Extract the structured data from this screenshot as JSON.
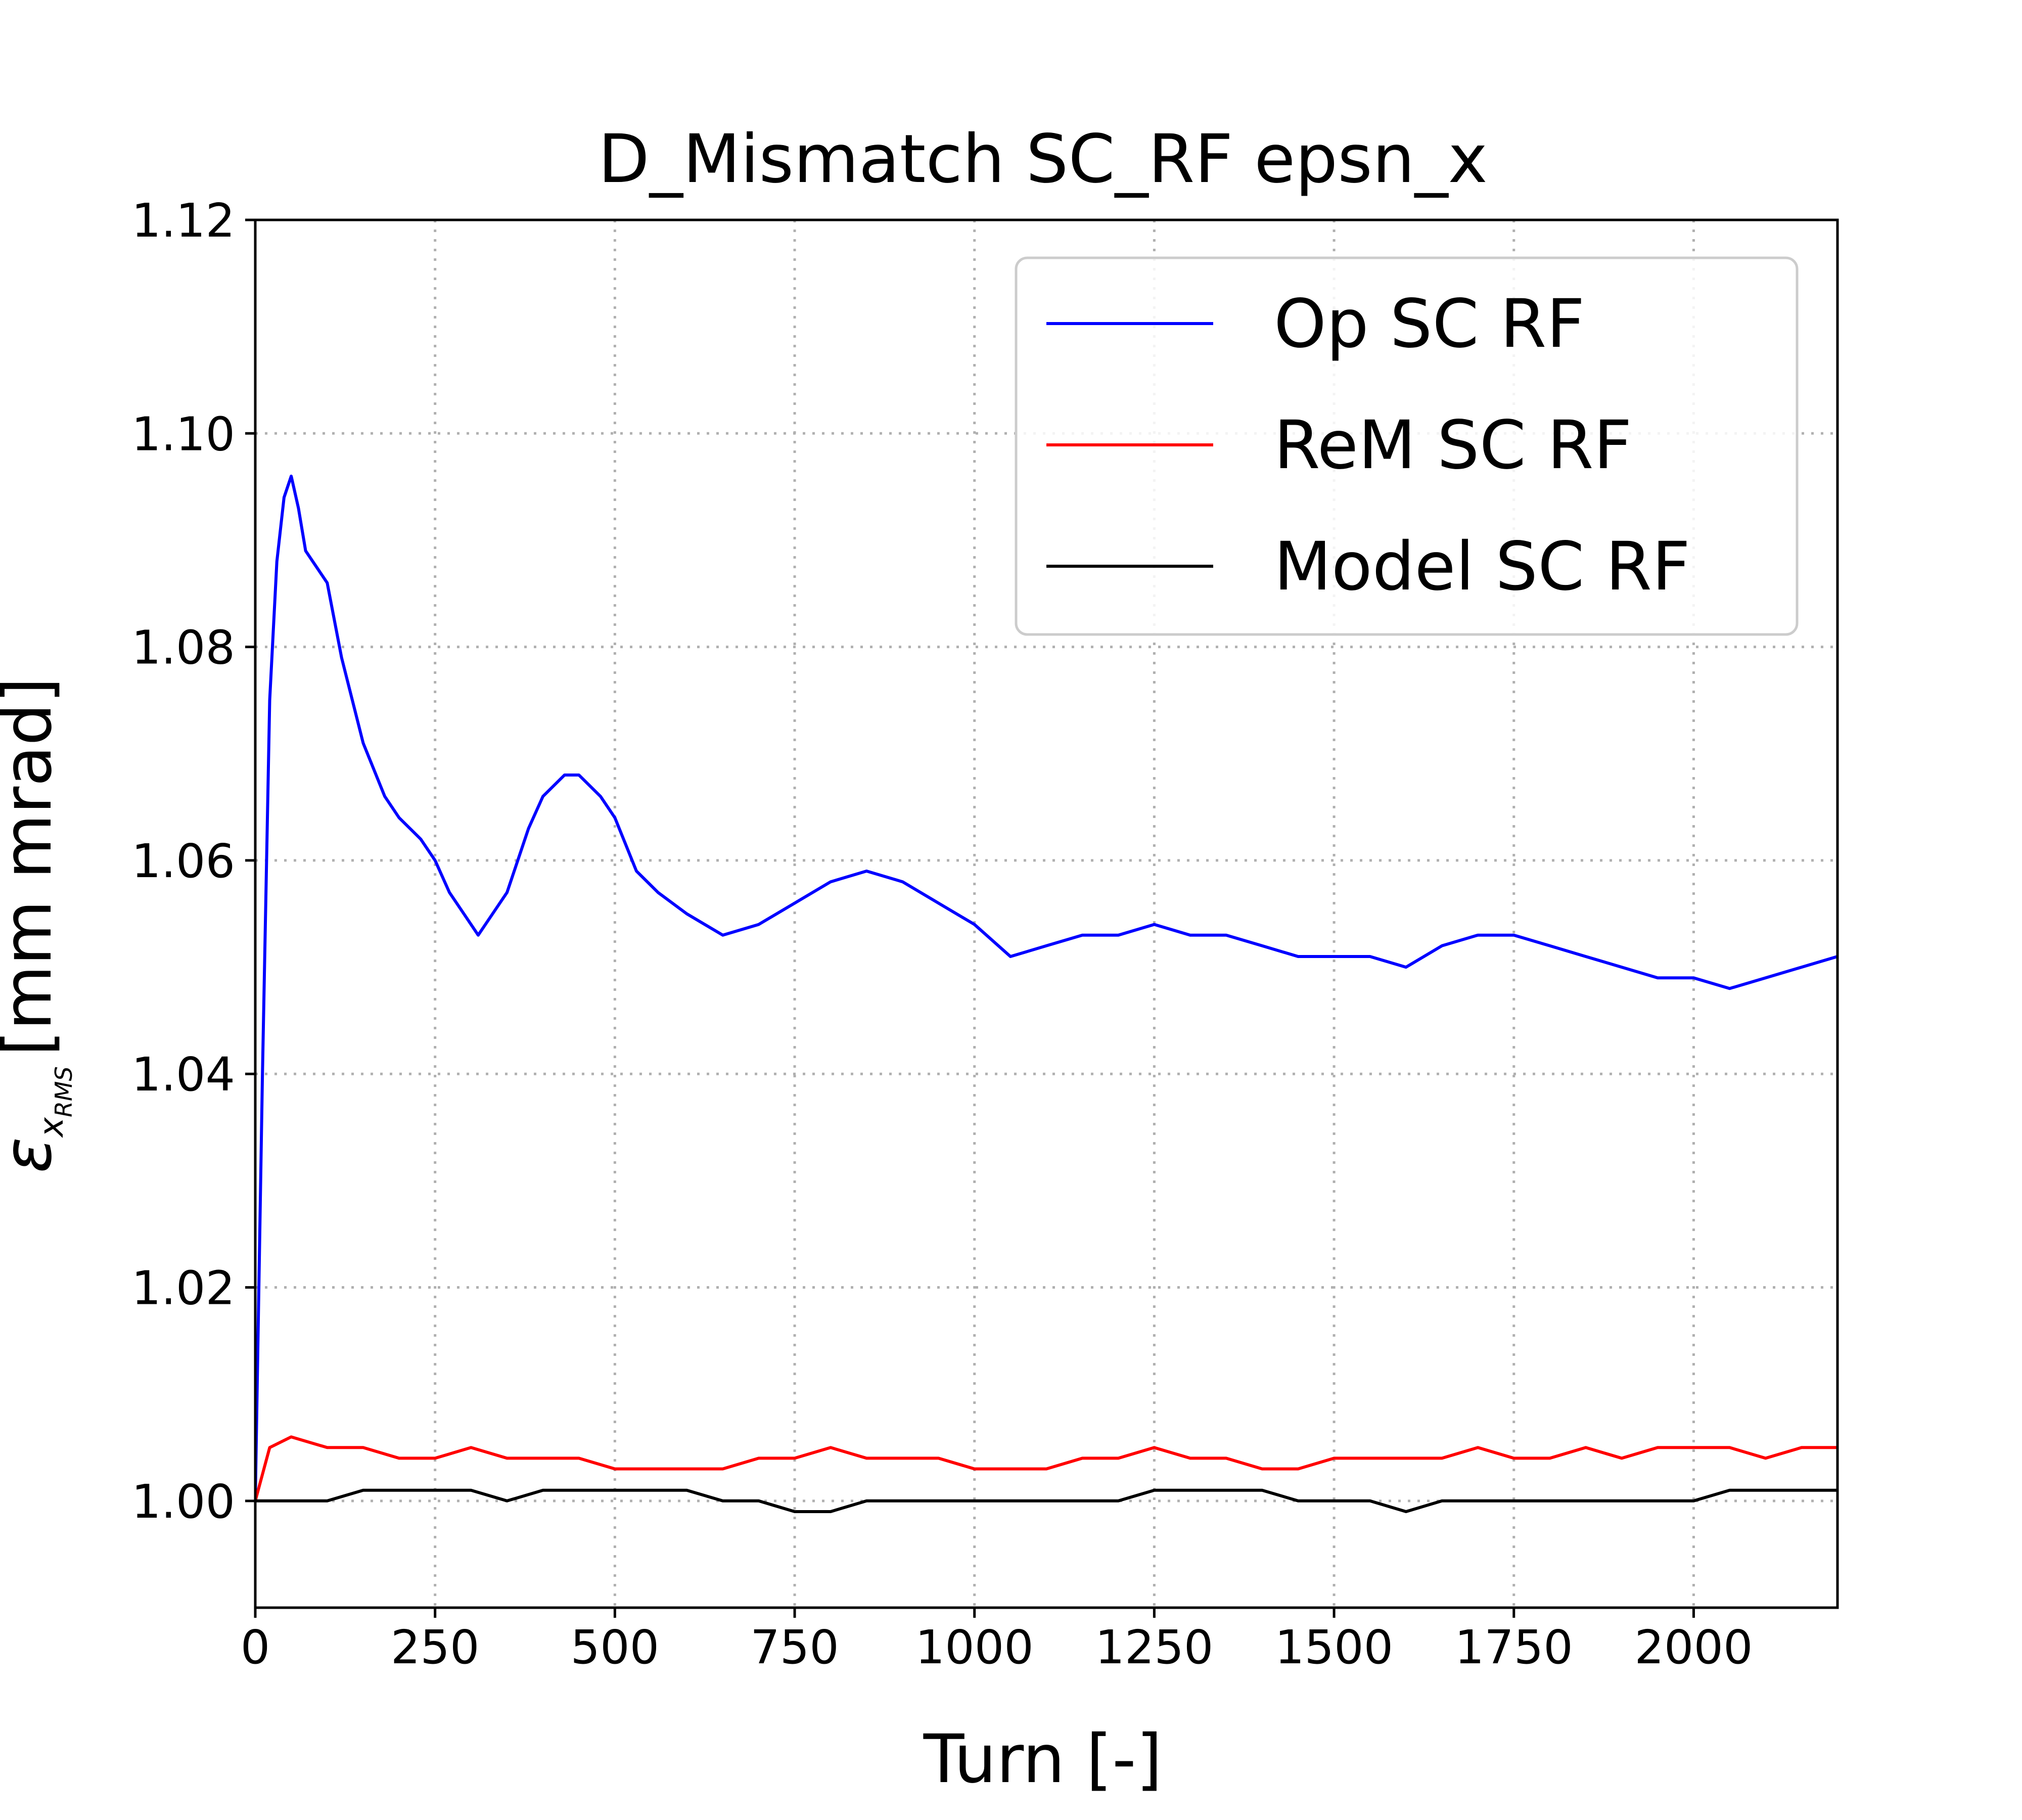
{
  "chart_data": {
    "type": "line",
    "title": "D_Mismatch SC_RF epsn_x",
    "xlabel": "Turn [-]",
    "ylabel_symbol": "ε",
    "ylabel_subscript": "x",
    "ylabel_sub_subscript": "RMS",
    "ylabel_units": "[mm mrad]",
    "xlim": [
      0,
      2200
    ],
    "ylim": [
      0.99,
      1.12
    ],
    "xticks": [
      0,
      250,
      500,
      750,
      1000,
      1250,
      1500,
      1750,
      2000
    ],
    "xtick_labels": [
      "0",
      "250",
      "500",
      "750",
      "1000",
      "1250",
      "1500",
      "1750",
      "2000"
    ],
    "yticks": [
      1.0,
      1.02,
      1.04,
      1.06,
      1.08,
      1.1,
      1.12
    ],
    "ytick_labels": [
      "1.00",
      "1.02",
      "1.04",
      "1.06",
      "1.08",
      "1.10",
      "1.12"
    ],
    "grid": true,
    "legend_position": "top-right",
    "series": [
      {
        "name": "Op SC RF",
        "color": "#0000ff",
        "x": [
          0,
          10,
          20,
          30,
          40,
          50,
          60,
          70,
          80,
          100,
          120,
          150,
          180,
          200,
          230,
          250,
          270,
          290,
          310,
          330,
          350,
          380,
          400,
          430,
          450,
          480,
          500,
          530,
          560,
          600,
          650,
          700,
          750,
          800,
          850,
          900,
          950,
          1000,
          1050,
          1100,
          1150,
          1200,
          1250,
          1300,
          1350,
          1400,
          1450,
          1500,
          1550,
          1600,
          1650,
          1700,
          1750,
          1800,
          1850,
          1900,
          1950,
          2000,
          2050,
          2100,
          2150,
          2200
        ],
        "y": [
          1.0,
          1.04,
          1.075,
          1.088,
          1.094,
          1.096,
          1.093,
          1.089,
          1.088,
          1.086,
          1.079,
          1.071,
          1.066,
          1.064,
          1.062,
          1.06,
          1.057,
          1.055,
          1.053,
          1.055,
          1.057,
          1.063,
          1.066,
          1.068,
          1.068,
          1.066,
          1.064,
          1.059,
          1.057,
          1.055,
          1.053,
          1.054,
          1.056,
          1.058,
          1.059,
          1.058,
          1.056,
          1.054,
          1.051,
          1.052,
          1.053,
          1.053,
          1.054,
          1.053,
          1.053,
          1.052,
          1.051,
          1.051,
          1.051,
          1.05,
          1.052,
          1.053,
          1.053,
          1.052,
          1.051,
          1.05,
          1.049,
          1.049,
          1.048,
          1.049,
          1.05,
          1.051
        ]
      },
      {
        "name": "ReM SC RF",
        "color": "#ff0000",
        "x": [
          0,
          20,
          50,
          100,
          150,
          200,
          250,
          300,
          350,
          400,
          450,
          500,
          550,
          600,
          650,
          700,
          750,
          800,
          850,
          900,
          950,
          1000,
          1050,
          1100,
          1150,
          1200,
          1250,
          1300,
          1350,
          1400,
          1450,
          1500,
          1550,
          1600,
          1650,
          1700,
          1750,
          1800,
          1850,
          1900,
          1950,
          2000,
          2050,
          2100,
          2150,
          2200
        ],
        "y": [
          1.0,
          1.005,
          1.006,
          1.005,
          1.005,
          1.004,
          1.004,
          1.005,
          1.004,
          1.004,
          1.004,
          1.003,
          1.003,
          1.003,
          1.003,
          1.004,
          1.004,
          1.005,
          1.004,
          1.004,
          1.004,
          1.003,
          1.003,
          1.003,
          1.004,
          1.004,
          1.005,
          1.004,
          1.004,
          1.003,
          1.003,
          1.004,
          1.004,
          1.004,
          1.004,
          1.005,
          1.004,
          1.004,
          1.005,
          1.004,
          1.005,
          1.005,
          1.005,
          1.004,
          1.005,
          1.005
        ]
      },
      {
        "name": "Model SC RF",
        "color": "#000000",
        "x": [
          0,
          20,
          50,
          100,
          150,
          200,
          250,
          300,
          350,
          400,
          450,
          500,
          550,
          600,
          650,
          700,
          750,
          800,
          850,
          900,
          950,
          1000,
          1050,
          1100,
          1150,
          1200,
          1250,
          1300,
          1350,
          1400,
          1450,
          1500,
          1550,
          1600,
          1650,
          1700,
          1750,
          1800,
          1850,
          1900,
          1950,
          2000,
          2050,
          2100,
          2150,
          2200
        ],
        "y": [
          1.0,
          1.0,
          1.0,
          1.0,
          1.001,
          1.001,
          1.001,
          1.001,
          1.0,
          1.001,
          1.001,
          1.001,
          1.001,
          1.001,
          1.0,
          1.0,
          0.999,
          0.999,
          1.0,
          1.0,
          1.0,
          1.0,
          1.0,
          1.0,
          1.0,
          1.0,
          1.001,
          1.001,
          1.001,
          1.001,
          1.0,
          1.0,
          1.0,
          0.999,
          1.0,
          1.0,
          1.0,
          1.0,
          1.0,
          1.0,
          1.0,
          1.0,
          1.001,
          1.001,
          1.001,
          1.001
        ]
      }
    ]
  }
}
